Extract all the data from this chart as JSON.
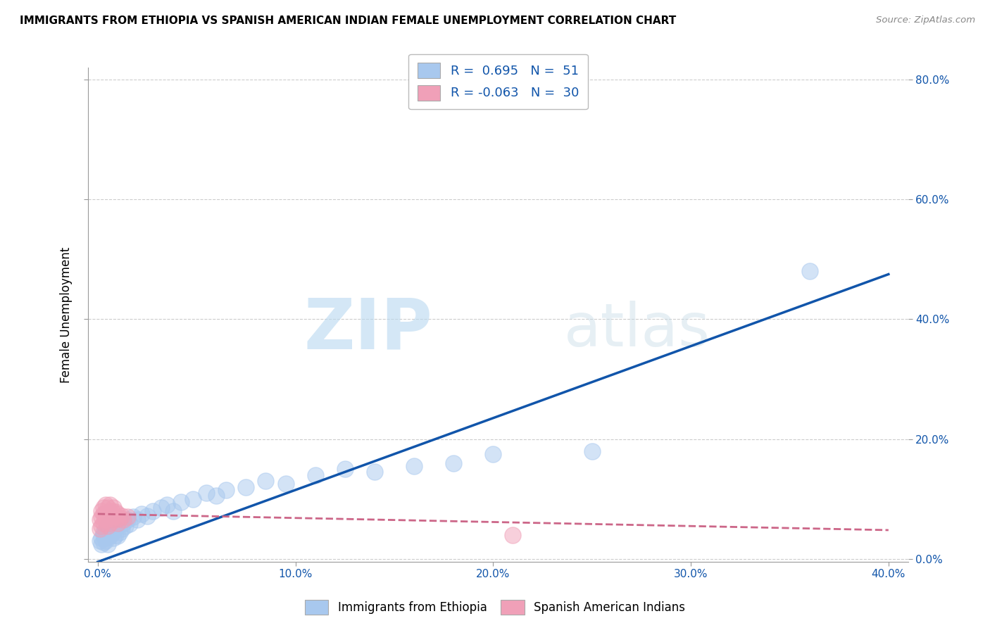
{
  "title": "IMMIGRANTS FROM ETHIOPIA VS SPANISH AMERICAN INDIAN FEMALE UNEMPLOYMENT CORRELATION CHART",
  "source": "Source: ZipAtlas.com",
  "xlabel_vals": [
    0.0,
    0.1,
    0.2,
    0.3,
    0.4
  ],
  "ylabel_vals": [
    0.0,
    0.2,
    0.4,
    0.6,
    0.8
  ],
  "ylabel_label": "Female Unemployment",
  "legend_blue_label": "Immigrants from Ethiopia",
  "legend_pink_label": "Spanish American Indians",
  "R_blue": 0.695,
  "N_blue": 51,
  "R_pink": -0.063,
  "N_pink": 30,
  "blue_color": "#a8c8ee",
  "pink_color": "#f0a0b8",
  "blue_line_color": "#1155aa",
  "pink_line_color": "#cc6688",
  "watermark_zip": "ZIP",
  "watermark_atlas": "atlas",
  "blue_scatter_x": [
    0.001,
    0.002,
    0.002,
    0.003,
    0.003,
    0.003,
    0.004,
    0.004,
    0.004,
    0.005,
    0.005,
    0.005,
    0.006,
    0.006,
    0.007,
    0.007,
    0.008,
    0.008,
    0.009,
    0.009,
    0.01,
    0.011,
    0.012,
    0.013,
    0.014,
    0.015,
    0.016,
    0.018,
    0.02,
    0.022,
    0.025,
    0.028,
    0.032,
    0.035,
    0.038,
    0.042,
    0.048,
    0.055,
    0.06,
    0.065,
    0.075,
    0.085,
    0.095,
    0.11,
    0.125,
    0.14,
    0.16,
    0.18,
    0.2,
    0.25,
    0.36
  ],
  "blue_scatter_y": [
    0.03,
    0.025,
    0.035,
    0.04,
    0.028,
    0.045,
    0.035,
    0.05,
    0.03,
    0.04,
    0.025,
    0.055,
    0.038,
    0.06,
    0.042,
    0.048,
    0.035,
    0.055,
    0.04,
    0.05,
    0.038,
    0.045,
    0.05,
    0.06,
    0.055,
    0.065,
    0.058,
    0.07,
    0.065,
    0.075,
    0.072,
    0.08,
    0.085,
    0.09,
    0.08,
    0.095,
    0.1,
    0.11,
    0.105,
    0.115,
    0.12,
    0.13,
    0.125,
    0.14,
    0.15,
    0.145,
    0.155,
    0.16,
    0.175,
    0.18,
    0.48
  ],
  "pink_scatter_x": [
    0.001,
    0.001,
    0.002,
    0.002,
    0.002,
    0.003,
    0.003,
    0.003,
    0.004,
    0.004,
    0.004,
    0.005,
    0.005,
    0.005,
    0.006,
    0.006,
    0.006,
    0.007,
    0.007,
    0.008,
    0.008,
    0.009,
    0.009,
    0.01,
    0.01,
    0.011,
    0.012,
    0.013,
    0.015,
    0.21
  ],
  "pink_scatter_y": [
    0.05,
    0.065,
    0.055,
    0.07,
    0.08,
    0.06,
    0.075,
    0.085,
    0.065,
    0.075,
    0.09,
    0.055,
    0.07,
    0.085,
    0.06,
    0.078,
    0.09,
    0.068,
    0.08,
    0.072,
    0.085,
    0.065,
    0.078,
    0.06,
    0.075,
    0.068,
    0.072,
    0.065,
    0.07,
    0.04
  ],
  "blue_line_x": [
    0.0,
    0.4
  ],
  "blue_line_y": [
    -0.005,
    0.475
  ],
  "pink_line_x": [
    0.0,
    0.4
  ],
  "pink_line_y": [
    0.075,
    0.048
  ],
  "xlim": [
    -0.005,
    0.41
  ],
  "ylim": [
    -0.005,
    0.82
  ],
  "bg_color": "#ffffff",
  "grid_color": "#cccccc",
  "tick_color": "#1155aa",
  "bottom_axis_color": "#888888"
}
